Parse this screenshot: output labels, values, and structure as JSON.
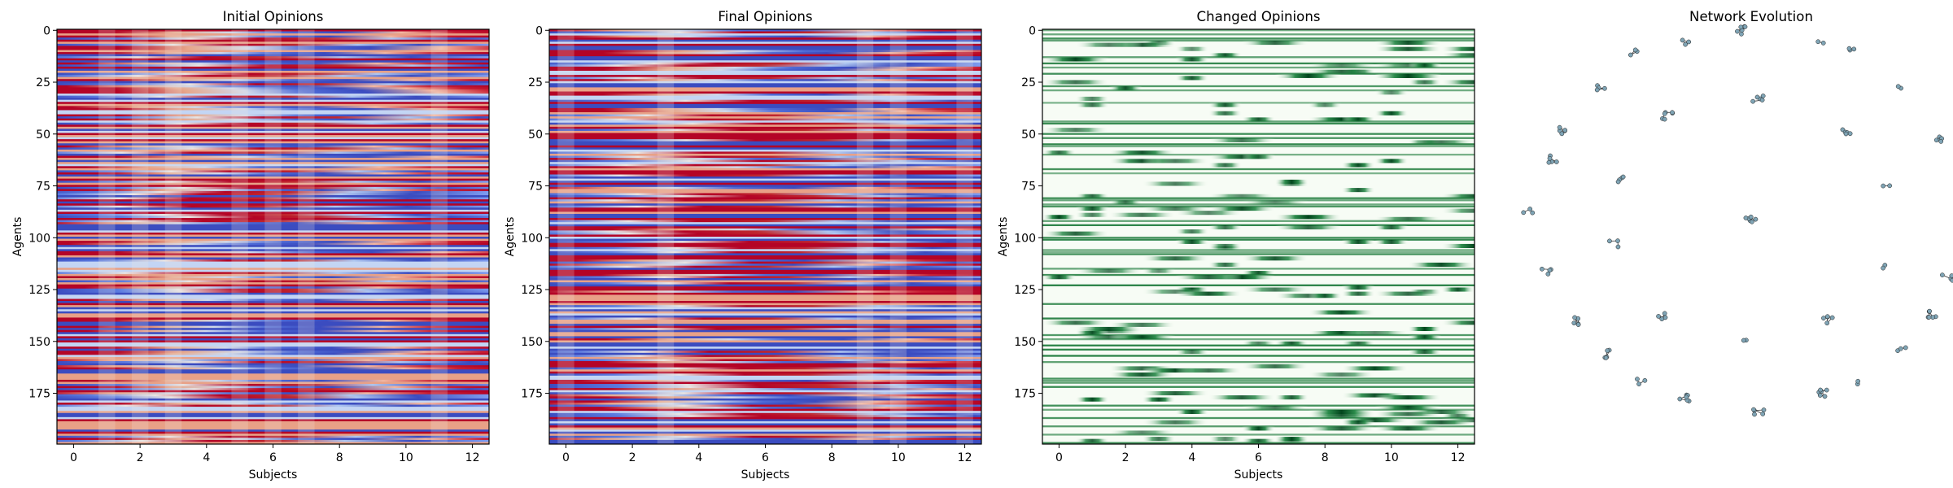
{
  "chart_data": [
    {
      "type": "heatmap",
      "title": "Initial Opinions",
      "xlabel": "Subjects",
      "ylabel": "Agents",
      "colormap": "coolwarm",
      "xlim": [
        -0.5,
        12.5
      ],
      "ylim": [
        199.5,
        -0.5
      ],
      "x_ticks": [
        "0",
        "2",
        "4",
        "6",
        "8",
        "10",
        "12"
      ],
      "y_ticks": [
        "0",
        "25",
        "50",
        "75",
        "100",
        "125",
        "150",
        "175"
      ],
      "rows": 200,
      "cols": 13
    },
    {
      "type": "heatmap",
      "title": "Final Opinions",
      "xlabel": "Subjects",
      "ylabel": "Agents",
      "colormap": "coolwarm",
      "xlim": [
        -0.5,
        12.5
      ],
      "ylim": [
        199.5,
        -0.5
      ],
      "x_ticks": [
        "0",
        "2",
        "4",
        "6",
        "8",
        "10",
        "12"
      ],
      "y_ticks": [
        "0",
        "25",
        "50",
        "75",
        "100",
        "125",
        "150",
        "175"
      ],
      "rows": 200,
      "cols": 13
    },
    {
      "type": "heatmap",
      "title": "Changed Opinions",
      "xlabel": "Subjects",
      "ylabel": "Agents",
      "colormap": "Greens",
      "xlim": [
        -0.5,
        12.5
      ],
      "ylim": [
        199.5,
        -0.5
      ],
      "x_ticks": [
        "0",
        "2",
        "4",
        "6",
        "8",
        "10",
        "12"
      ],
      "y_ticks": [
        "0",
        "25",
        "50",
        "75",
        "100",
        "125",
        "150",
        "175"
      ],
      "rows": 200,
      "cols": 13
    },
    {
      "type": "scatter",
      "title": "Network Evolution",
      "axes_visible": false,
      "node_color": "#7fa4b5",
      "edge_color": "#333333",
      "clusters": 40
    }
  ],
  "colors": {
    "coolwarm_low": "#3b4cc0",
    "coolwarm_mid": "#dddddd",
    "coolwarm_high": "#b40426",
    "greens_low": "#f7fcf5",
    "greens_high": "#00441b"
  }
}
